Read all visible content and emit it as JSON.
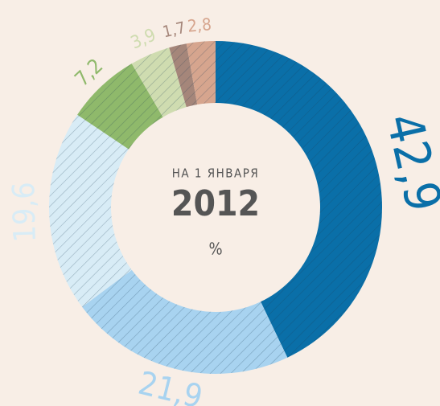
{
  "chart_data": {
    "type": "donut",
    "subtitle": "НА 1 ЯНВАРЯ",
    "title": "2012",
    "unit": "%",
    "categories": [
      null,
      null,
      null,
      null,
      null,
      null,
      null
    ],
    "values": [
      42.9,
      21.9,
      19.6,
      7.2,
      3.9,
      1.7,
      2.8
    ],
    "value_labels": [
      "42,9",
      "21,9",
      "19,6",
      "7,2",
      "3,9",
      "1,7",
      "2,8"
    ],
    "colors": [
      "#0a6fa8",
      "#a8d3f0",
      "#d8ecf6",
      "#8fb96b",
      "#cfdcb0",
      "#a5867a",
      "#d6a58e"
    ]
  }
}
